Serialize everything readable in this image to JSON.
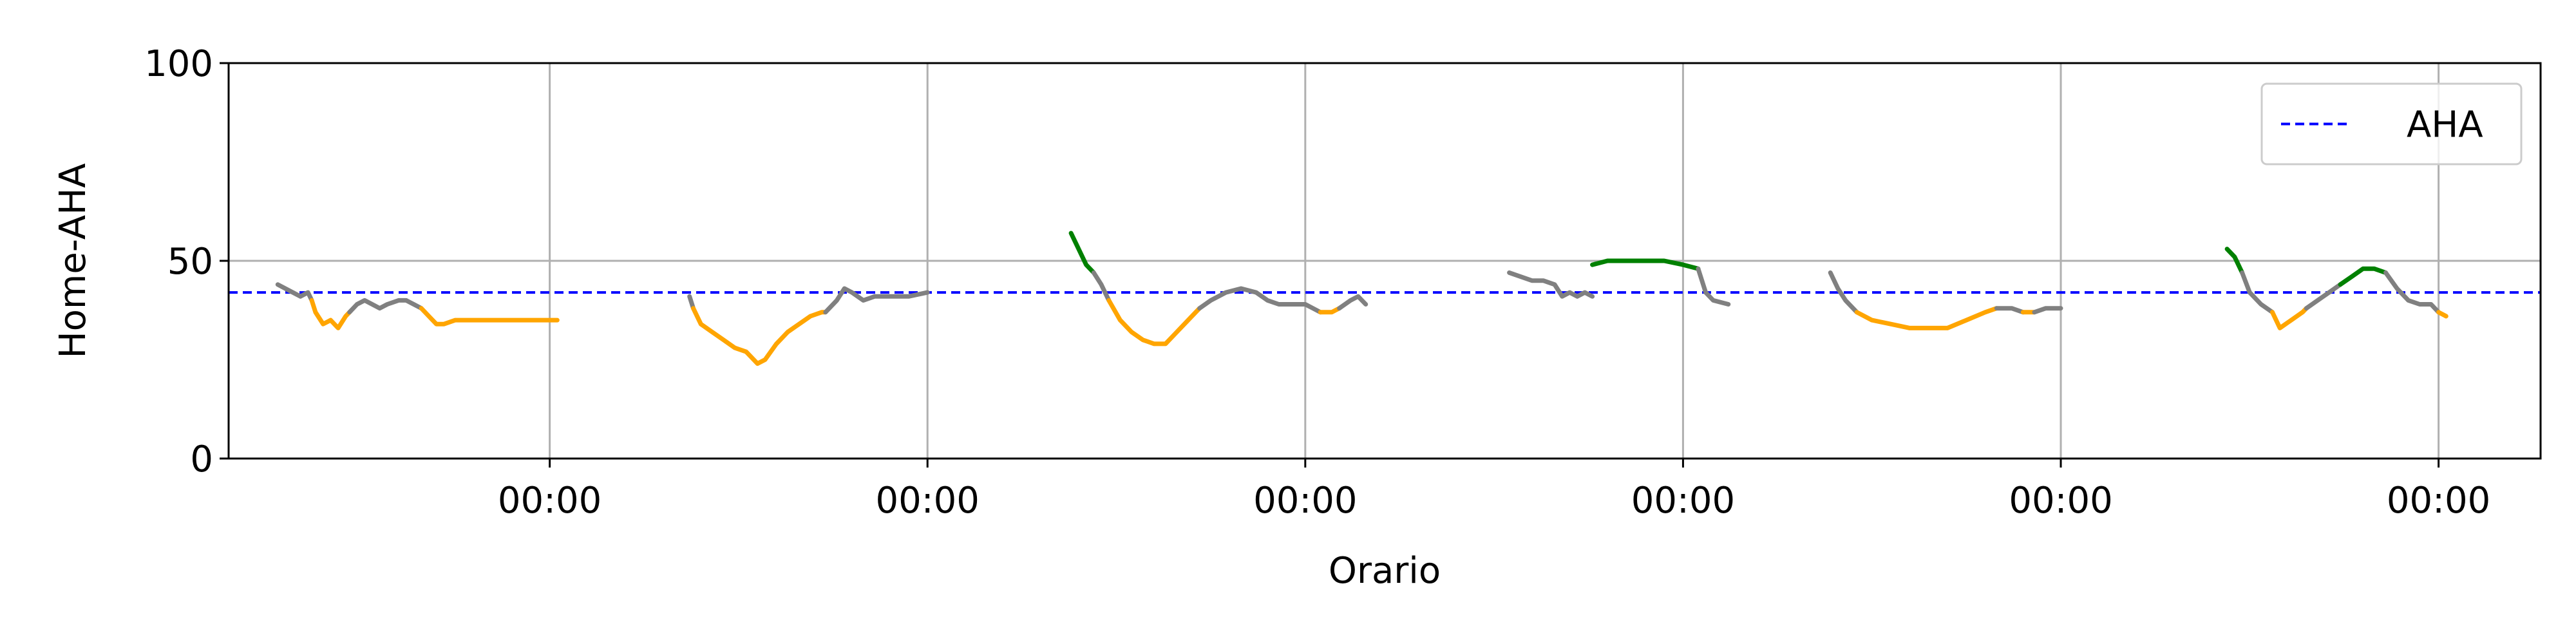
{
  "chart_data": {
    "type": "line",
    "title": "",
    "xlabel": "Orario",
    "ylabel": "Home-AHA",
    "ylim": [
      0,
      100
    ],
    "y_ticks": [
      0,
      50,
      100
    ],
    "x_ticks": [
      {
        "day": 1,
        "label": "00:00"
      },
      {
        "day": 2,
        "label": "00:00"
      },
      {
        "day": 3,
        "label": "00:00"
      },
      {
        "day": 4,
        "label": "00:00"
      },
      {
        "day": 5,
        "label": "00:00"
      },
      {
        "day": 6,
        "label": "00:00"
      }
    ],
    "xlim": [
      0.15,
      6.27
    ],
    "grid": true,
    "legend": {
      "position": "top-right",
      "entries": [
        "AHA"
      ]
    },
    "reference_line": {
      "name": "AHA",
      "value": 42,
      "color": "#0000ff",
      "style": "dashed"
    },
    "colors": {
      "above": "#008000",
      "near": "#808080",
      "below": "#ffa500"
    },
    "segments": [
      {
        "color": "near",
        "points": [
          [
            0.28,
            44
          ],
          [
            0.3,
            43
          ],
          [
            0.32,
            42
          ],
          [
            0.34,
            41
          ],
          [
            0.36,
            42
          ],
          [
            0.37,
            40
          ]
        ]
      },
      {
        "color": "below",
        "points": [
          [
            0.37,
            40
          ],
          [
            0.38,
            37
          ],
          [
            0.4,
            34
          ],
          [
            0.42,
            35
          ],
          [
            0.44,
            33
          ],
          [
            0.46,
            36
          ],
          [
            0.47,
            37
          ]
        ]
      },
      {
        "color": "near",
        "points": [
          [
            0.47,
            37
          ],
          [
            0.49,
            39
          ],
          [
            0.51,
            40
          ],
          [
            0.53,
            39
          ],
          [
            0.55,
            38
          ],
          [
            0.57,
            39
          ],
          [
            0.6,
            40
          ],
          [
            0.62,
            40
          ],
          [
            0.64,
            39
          ],
          [
            0.66,
            38
          ]
        ]
      },
      {
        "color": "below",
        "points": [
          [
            0.66,
            38
          ],
          [
            0.68,
            36
          ],
          [
            0.7,
            34
          ],
          [
            0.72,
            34
          ],
          [
            0.75,
            35
          ],
          [
            0.78,
            35
          ],
          [
            1.02,
            35
          ]
        ]
      },
      {
        "color": "near",
        "points": [
          [
            1.37,
            41
          ],
          [
            1.38,
            38
          ]
        ]
      },
      {
        "color": "below",
        "points": [
          [
            1.38,
            38
          ],
          [
            1.4,
            34
          ],
          [
            1.43,
            32
          ],
          [
            1.46,
            30
          ],
          [
            1.49,
            28
          ],
          [
            1.52,
            27
          ],
          [
            1.55,
            24
          ],
          [
            1.57,
            25
          ],
          [
            1.6,
            29
          ],
          [
            1.63,
            32
          ],
          [
            1.66,
            34
          ],
          [
            1.69,
            36
          ],
          [
            1.72,
            37
          ],
          [
            1.73,
            37
          ]
        ]
      },
      {
        "color": "near",
        "points": [
          [
            1.73,
            37
          ],
          [
            1.76,
            40
          ],
          [
            1.78,
            43
          ],
          [
            1.8,
            42
          ],
          [
            1.83,
            40
          ],
          [
            1.86,
            41
          ],
          [
            1.89,
            41
          ],
          [
            1.92,
            41
          ],
          [
            1.95,
            41
          ],
          [
            2.0,
            42
          ]
        ]
      },
      {
        "color": "above",
        "points": [
          [
            2.38,
            57
          ],
          [
            2.4,
            53
          ],
          [
            2.42,
            49
          ],
          [
            2.44,
            47
          ]
        ]
      },
      {
        "color": "near",
        "points": [
          [
            2.44,
            47
          ],
          [
            2.46,
            44
          ],
          [
            2.48,
            40
          ]
        ]
      },
      {
        "color": "below",
        "points": [
          [
            2.48,
            40
          ],
          [
            2.51,
            35
          ],
          [
            2.54,
            32
          ],
          [
            2.57,
            30
          ],
          [
            2.6,
            29
          ],
          [
            2.63,
            29
          ],
          [
            2.66,
            32
          ],
          [
            2.69,
            35
          ],
          [
            2.72,
            38
          ]
        ]
      },
      {
        "color": "near",
        "points": [
          [
            2.72,
            38
          ],
          [
            2.75,
            40
          ],
          [
            2.79,
            42
          ],
          [
            2.83,
            43
          ],
          [
            2.87,
            42
          ],
          [
            2.9,
            40
          ],
          [
            2.93,
            39
          ],
          [
            2.96,
            39
          ],
          [
            3.0,
            39
          ],
          [
            3.04,
            37
          ]
        ]
      },
      {
        "color": "below",
        "points": [
          [
            3.04,
            37
          ],
          [
            3.07,
            37
          ],
          [
            3.09,
            38
          ]
        ]
      },
      {
        "color": "near",
        "points": [
          [
            3.09,
            38
          ],
          [
            3.12,
            40
          ],
          [
            3.14,
            41
          ],
          [
            3.16,
            39
          ]
        ]
      },
      {
        "color": "near",
        "points": [
          [
            3.54,
            47
          ],
          [
            3.57,
            46
          ],
          [
            3.6,
            45
          ],
          [
            3.63,
            45
          ],
          [
            3.66,
            44
          ],
          [
            3.68,
            41
          ],
          [
            3.7,
            42
          ],
          [
            3.72,
            41
          ],
          [
            3.74,
            42
          ],
          [
            3.76,
            41
          ]
        ]
      },
      {
        "color": "above",
        "points": [
          [
            3.76,
            49
          ],
          [
            3.8,
            50
          ],
          [
            3.85,
            50
          ],
          [
            3.9,
            50
          ],
          [
            3.95,
            50
          ],
          [
            4.0,
            49
          ],
          [
            4.04,
            48
          ]
        ]
      },
      {
        "color": "near",
        "points": [
          [
            4.04,
            48
          ],
          [
            4.06,
            42
          ],
          [
            4.08,
            40
          ],
          [
            4.12,
            39
          ]
        ]
      },
      {
        "color": "near",
        "points": [
          [
            4.39,
            47
          ],
          [
            4.41,
            43
          ],
          [
            4.43,
            40
          ],
          [
            4.46,
            37
          ]
        ]
      },
      {
        "color": "below",
        "points": [
          [
            4.46,
            37
          ],
          [
            4.5,
            35
          ],
          [
            4.55,
            34
          ],
          [
            4.6,
            33
          ],
          [
            4.65,
            33
          ],
          [
            4.7,
            33
          ],
          [
            4.75,
            35
          ],
          [
            4.8,
            37
          ],
          [
            4.83,
            38
          ]
        ]
      },
      {
        "color": "near",
        "points": [
          [
            4.83,
            38
          ],
          [
            4.87,
            38
          ],
          [
            4.9,
            37
          ]
        ]
      },
      {
        "color": "below",
        "points": [
          [
            4.9,
            37
          ],
          [
            4.93,
            37
          ]
        ]
      },
      {
        "color": "near",
        "points": [
          [
            4.93,
            37
          ],
          [
            4.96,
            38
          ],
          [
            5.0,
            38
          ]
        ]
      },
      {
        "color": "above",
        "points": [
          [
            5.44,
            53
          ],
          [
            5.46,
            51
          ],
          [
            5.48,
            47
          ]
        ]
      },
      {
        "color": "near",
        "points": [
          [
            5.48,
            47
          ],
          [
            5.5,
            42
          ],
          [
            5.53,
            39
          ],
          [
            5.56,
            37
          ]
        ]
      },
      {
        "color": "below",
        "points": [
          [
            5.56,
            37
          ],
          [
            5.58,
            33
          ],
          [
            5.61,
            35
          ],
          [
            5.64,
            37
          ],
          [
            5.65,
            38
          ]
        ]
      },
      {
        "color": "near",
        "points": [
          [
            5.65,
            38
          ],
          [
            5.68,
            40
          ],
          [
            5.71,
            42
          ],
          [
            5.74,
            44
          ]
        ]
      },
      {
        "color": "above",
        "points": [
          [
            5.74,
            44
          ],
          [
            5.77,
            46
          ],
          [
            5.8,
            48
          ],
          [
            5.83,
            48
          ],
          [
            5.86,
            47
          ]
        ]
      },
      {
        "color": "near",
        "points": [
          [
            5.86,
            47
          ],
          [
            5.89,
            43
          ],
          [
            5.92,
            40
          ],
          [
            5.95,
            39
          ],
          [
            5.98,
            39
          ],
          [
            6.0,
            37
          ]
        ]
      },
      {
        "color": "below",
        "points": [
          [
            6.0,
            37
          ],
          [
            6.02,
            36
          ]
        ]
      }
    ]
  }
}
